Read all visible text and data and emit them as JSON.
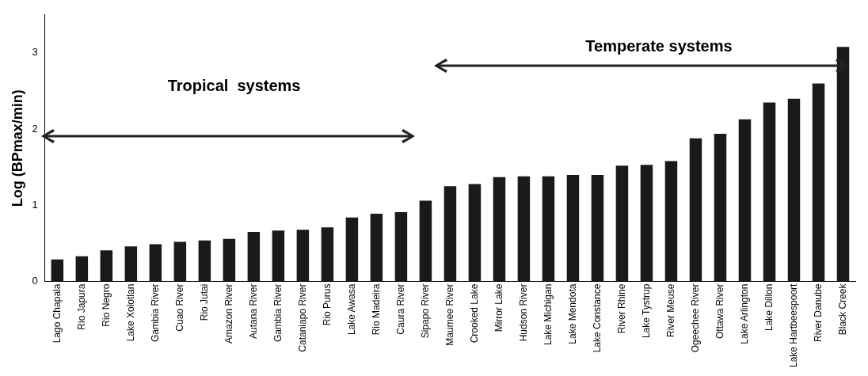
{
  "chart_data": {
    "type": "bar",
    "ylabel": "Log (BPmax/min)",
    "categories": [
      "Lago Chapala",
      "Rio Japura",
      "Rio Negro",
      "Lake Xolotlan",
      "Gambia River",
      "Cuao River",
      "Rio Jutai",
      "Amazon River",
      "Autana River",
      "Gambia River",
      "Cataniapo River",
      "Rio Purus",
      "Lake Awasa",
      "Rio Madeira",
      "Caura River",
      "Sipapo River",
      "Maumee River",
      "Crooked Lake",
      "Mirror Lake",
      "Hudson River",
      "Lake Michigan",
      "Lake Mendota",
      "Lake Constance",
      "River Rhine",
      "Lake Tystrup",
      "River Meuse",
      "Ogeechee River",
      "Ottawa River",
      "Lake Arlington",
      "Lake Dillon",
      "Lake Hartbeespoort",
      "River Danube",
      "Black Creek"
    ],
    "values": [
      0.29,
      0.33,
      0.41,
      0.46,
      0.49,
      0.52,
      0.54,
      0.56,
      0.65,
      0.67,
      0.68,
      0.71,
      0.84,
      0.89,
      0.91,
      1.06,
      1.25,
      1.28,
      1.37,
      1.38,
      1.38,
      1.4,
      1.4,
      1.52,
      1.53,
      1.58,
      1.88,
      1.94,
      2.13,
      2.35,
      2.4,
      2.6,
      3.08
    ],
    "color": "#1a1a1a",
    "ylim": [
      0,
      3.5
    ],
    "yticks": [
      0,
      1,
      2,
      3
    ],
    "grid": false,
    "annotations": [
      "Tropical  systems",
      "Temperate systems"
    ]
  }
}
